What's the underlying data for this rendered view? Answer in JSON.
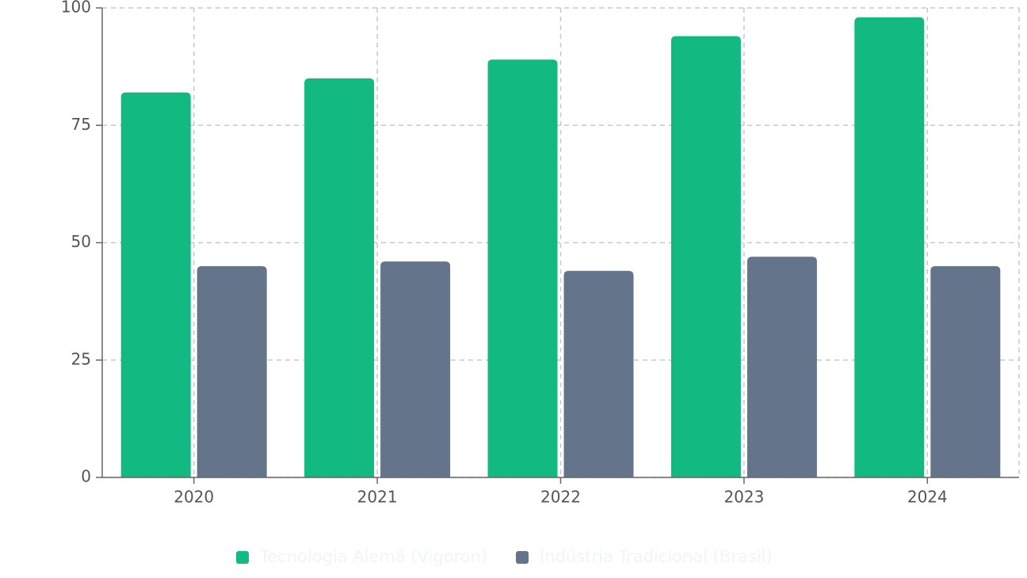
{
  "chart_data": {
    "type": "bar",
    "categories": [
      "2020",
      "2021",
      "2022",
      "2023",
      "2024"
    ],
    "series": [
      {
        "name": "Tecnologia Alemã (Vigoron)",
        "color": "#12b981",
        "values": [
          82,
          85,
          89,
          94,
          98
        ]
      },
      {
        "name": "Indústria Tradicional (Brasil)",
        "color": "#64748b",
        "values": [
          45,
          46,
          44,
          47,
          45
        ]
      }
    ],
    "ylim": [
      0,
      100
    ],
    "yticks": [
      0,
      25,
      50,
      75,
      100
    ],
    "grid": true
  }
}
